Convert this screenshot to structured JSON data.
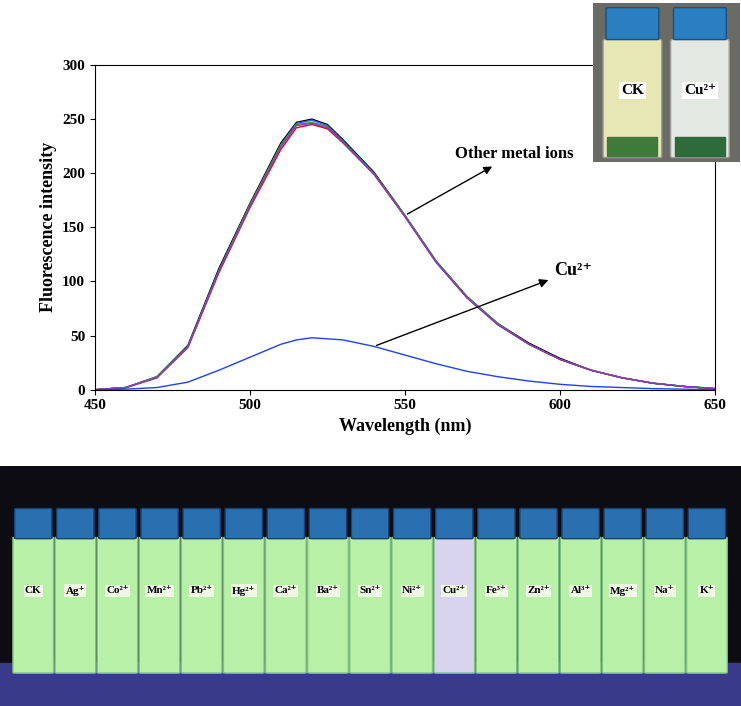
{
  "chart_data": {
    "type": "line",
    "x_label": "Wavelength (nm)",
    "y_label": "Fluorescence intensity",
    "x": [
      450,
      460,
      470,
      480,
      490,
      500,
      510,
      515,
      520,
      525,
      530,
      540,
      550,
      560,
      570,
      580,
      590,
      600,
      610,
      620,
      630,
      640,
      650
    ],
    "series": [
      {
        "color": "#000000",
        "values": [
          0,
          2,
          12,
          41,
          112,
          172,
          228,
          247,
          250,
          245,
          231,
          201,
          161,
          119,
          86,
          61,
          43,
          29,
          18,
          11,
          6,
          3,
          1
        ]
      },
      {
        "color": "#e8001c",
        "values": [
          0,
          2,
          11,
          39,
          108,
          168,
          222,
          242,
          245,
          241,
          228,
          199,
          160,
          118,
          85,
          60,
          42,
          28,
          18,
          11,
          6,
          3,
          1
        ]
      },
      {
        "color": "#3050ff",
        "values": [
          0,
          2,
          12,
          40,
          110,
          170,
          226,
          246,
          249,
          244,
          230,
          200,
          160,
          118,
          85,
          60,
          42,
          28,
          18,
          11,
          6,
          3,
          1
        ]
      },
      {
        "color": "#2ca02c",
        "values": [
          0,
          2,
          12,
          40,
          110,
          171,
          226,
          245,
          247,
          243,
          229,
          200,
          161,
          119,
          86,
          61,
          42,
          28,
          18,
          11,
          6,
          3,
          1
        ]
      },
      {
        "color": "#9b30c0",
        "values": [
          0,
          2,
          11,
          39,
          109,
          169,
          224,
          244,
          246,
          242,
          229,
          199,
          160,
          118,
          85,
          60,
          42,
          28,
          18,
          11,
          6,
          3,
          1
        ]
      },
      {
        "color": "#2040ff",
        "values": [
          0,
          0.5,
          2,
          7,
          18,
          30,
          42,
          46,
          48,
          47,
          46,
          40,
          32,
          24,
          17,
          12,
          8,
          5,
          3,
          2,
          1,
          0.5,
          0
        ]
      }
    ],
    "annotations": [
      "Other metal ions",
      "Cu²⁺"
    ],
    "xlim": [
      450,
      650
    ],
    "xticks": [
      450,
      500,
      550,
      600,
      650
    ],
    "ylim": [
      0,
      300
    ],
    "yticks": [
      0,
      50,
      100,
      150,
      200,
      250,
      300
    ],
    "grid": false
  },
  "photos": {
    "inset": {
      "labels": [
        "CK",
        "Cu²⁺"
      ]
    },
    "bottom": {
      "labels": [
        "CK",
        "Ag⁺",
        "Co²⁺",
        "Mn²⁺",
        "Pb²⁺",
        "Hg²⁺",
        "Ca²⁺",
        "Ba²⁺",
        "Sn²⁺",
        "Ni²⁺",
        "Cu²⁺",
        "Fe³⁺",
        "Zn²⁺",
        "Al³⁺",
        "Mg²⁺",
        "Na⁺",
        "K⁺"
      ]
    }
  }
}
